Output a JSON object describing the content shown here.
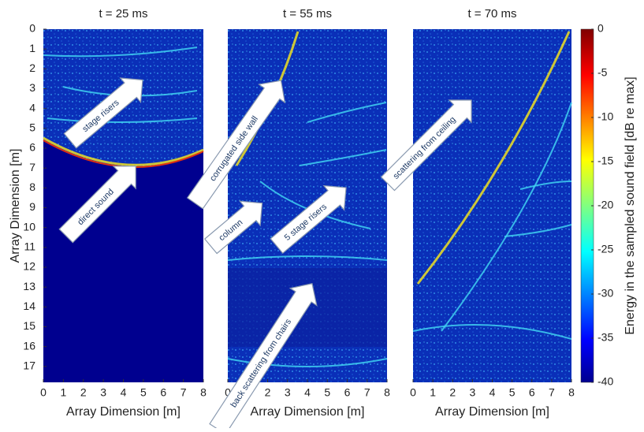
{
  "chart_data": [
    {
      "type": "heatmap",
      "title": "t = 25 ms",
      "x_label": "Array Dimension [m]",
      "y_label": "Array Dimension [m]",
      "xlim": [
        0,
        8
      ],
      "ylim": [
        0,
        17.8
      ],
      "xticks": [
        0,
        1,
        2,
        3,
        4,
        5,
        6,
        7,
        8
      ],
      "yticks": [
        0,
        1,
        2,
        3,
        4,
        5,
        6,
        7,
        8,
        9,
        10,
        11,
        12,
        13,
        14,
        15,
        16,
        17
      ],
      "annotations": [
        "stage risers",
        "direct sound"
      ]
    },
    {
      "type": "heatmap",
      "title": "t = 55 ms",
      "x_label": "Array Dimension [m]",
      "xlim": [
        0,
        8
      ],
      "ylim": [
        0,
        17.8
      ],
      "xticks": [
        0,
        1,
        2,
        3,
        4,
        5,
        6,
        7,
        8
      ],
      "annotations": [
        "corrugated side wall",
        "column",
        "5 stage risers",
        "back scattering from chairs"
      ]
    },
    {
      "type": "heatmap",
      "title": "t = 70 ms",
      "x_label": "Array Dimension [m]",
      "xlim": [
        0,
        8
      ],
      "ylim": [
        0,
        17.8
      ],
      "xticks": [
        0,
        1,
        2,
        3,
        4,
        5,
        6,
        7,
        8
      ],
      "annotations": [
        "scattering from ceiling"
      ],
      "colorbar": {
        "label": "Energy in the sampled sound field [dB re max]",
        "lim": [
          -40,
          0
        ],
        "ticks": [
          0,
          -5,
          -10,
          -15,
          -20,
          -25,
          -30,
          -35,
          -40
        ]
      }
    }
  ]
}
